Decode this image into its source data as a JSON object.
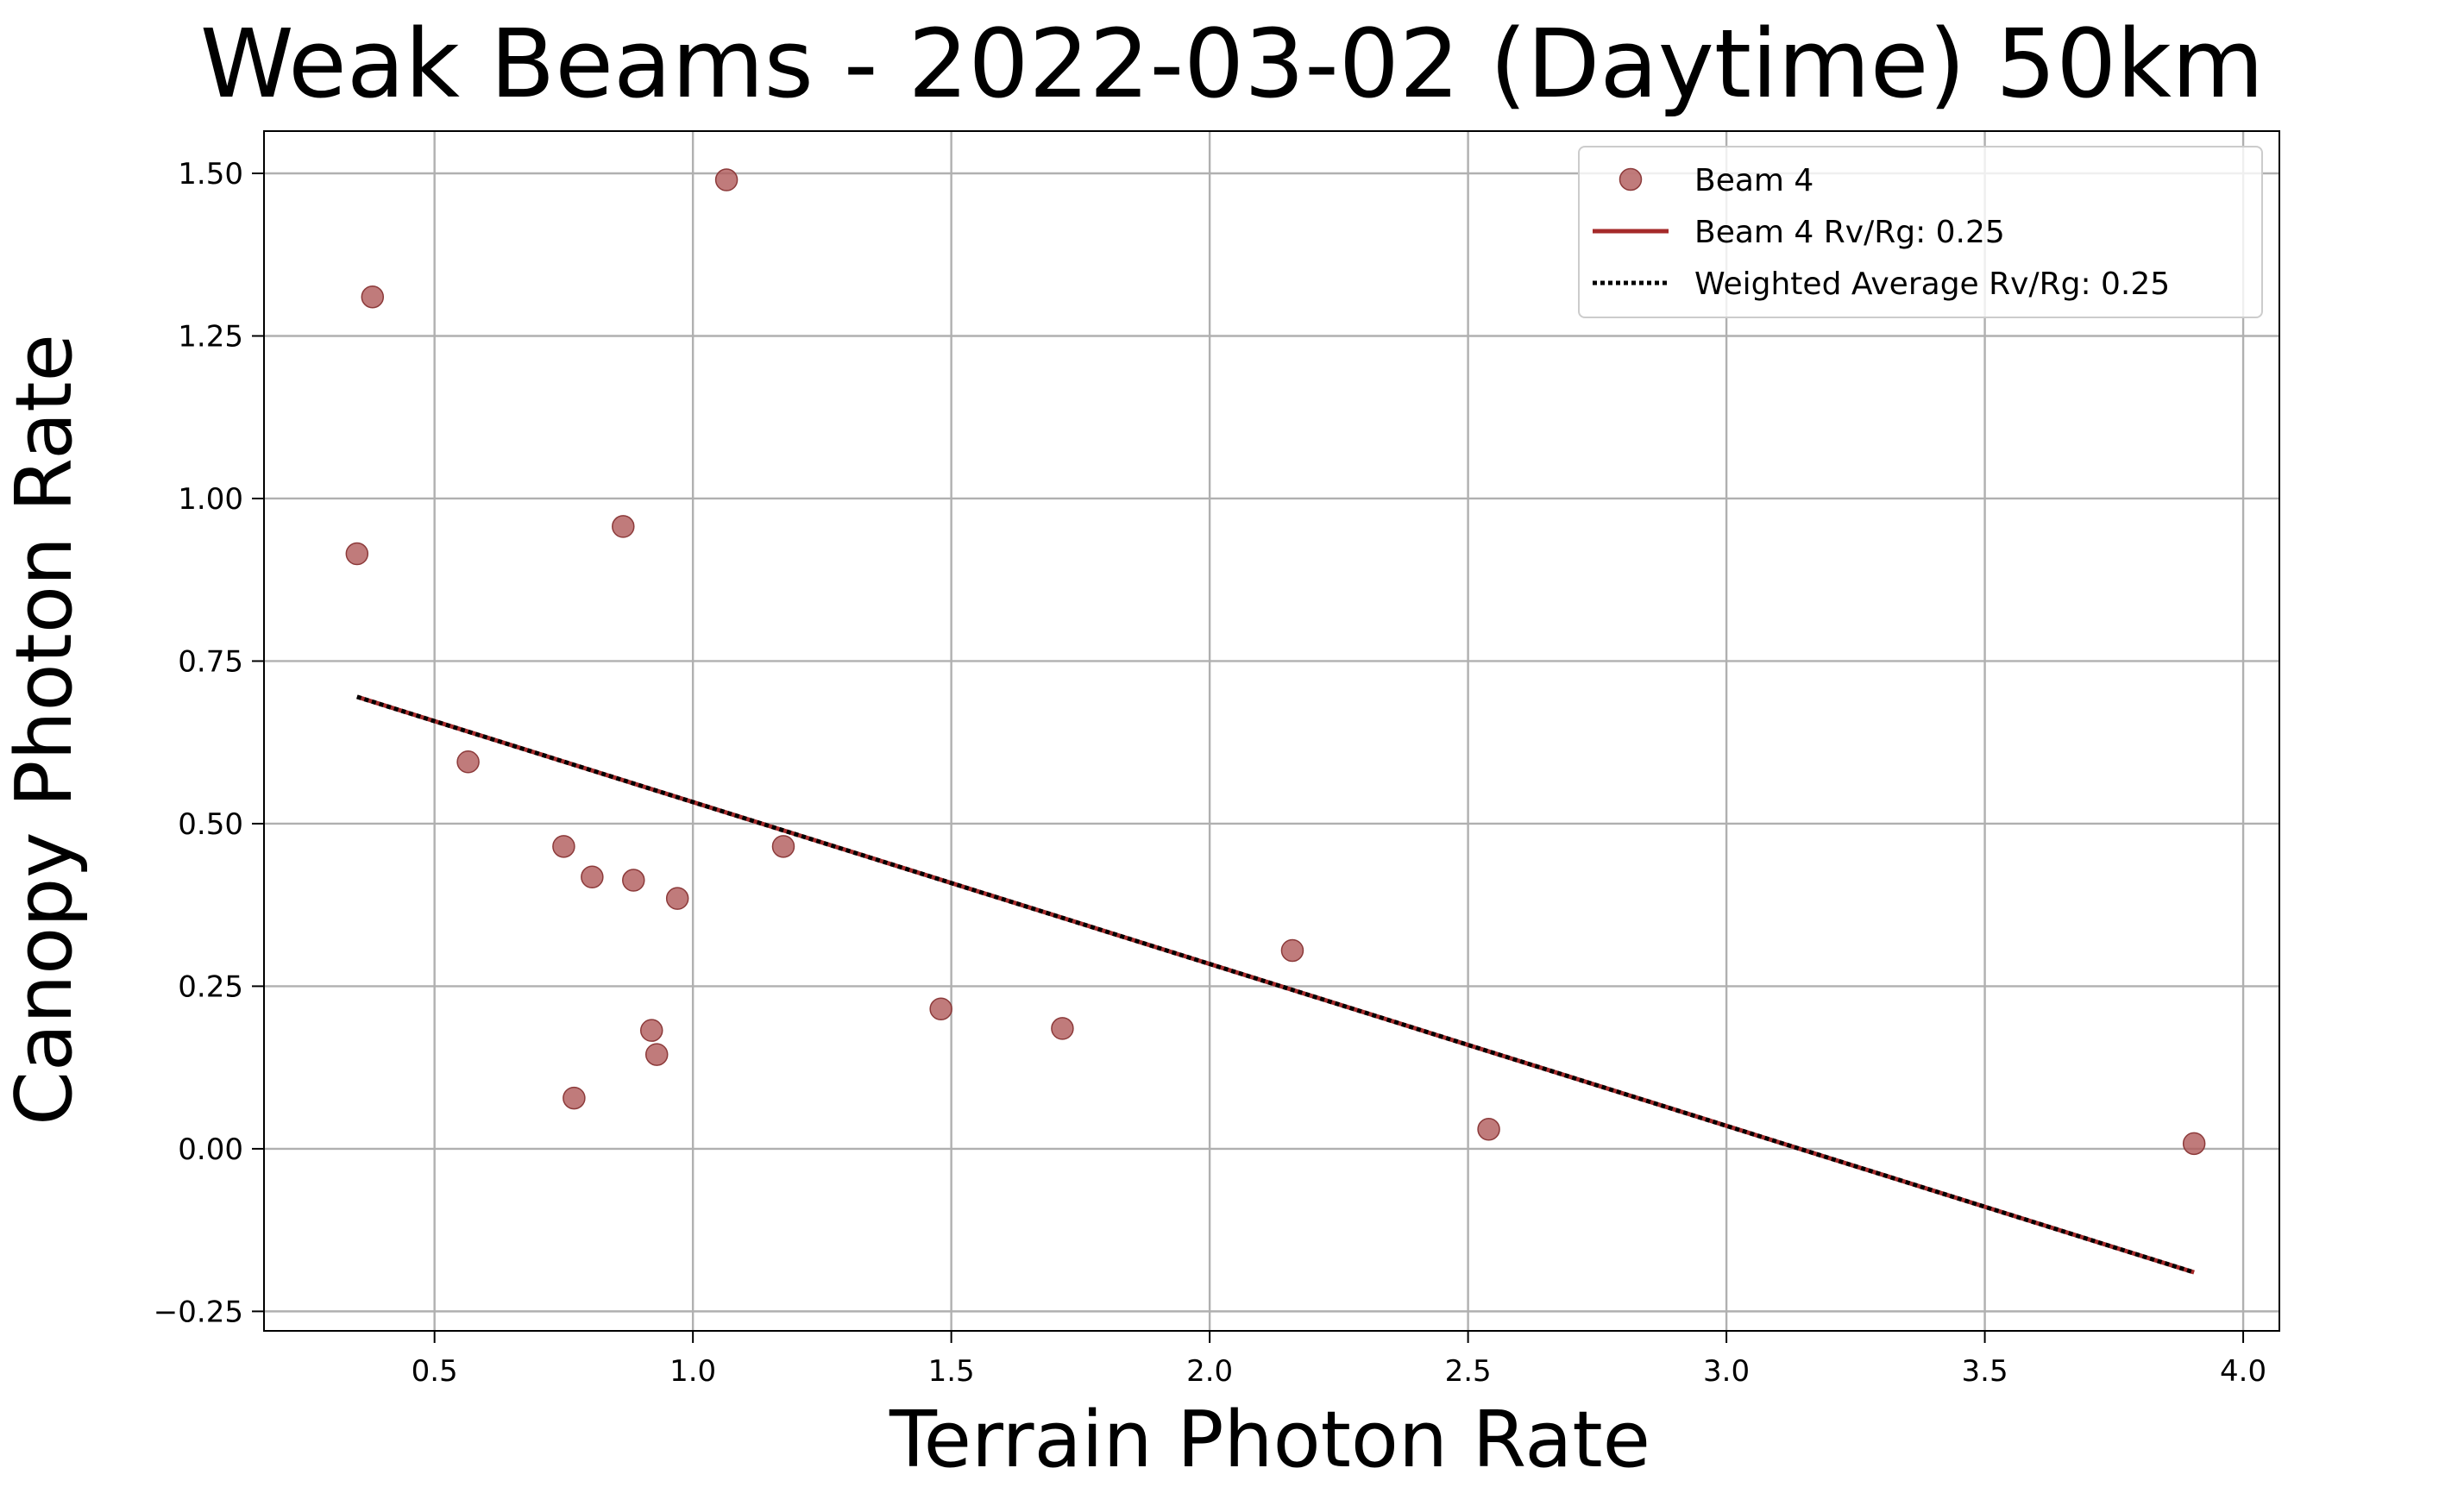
{
  "chart_data": {
    "type": "scatter",
    "title": "Weak Beams - 2022-03-02 (Daytime) 50km",
    "xlabel": "Terrain Photon Rate",
    "ylabel": "Canopy Photon Rate",
    "xlim": [
      0.17,
      4.07
    ],
    "ylim": [
      -0.28,
      1.565
    ],
    "xticks": [
      0.5,
      1.0,
      1.5,
      2.0,
      2.5,
      3.0,
      3.5,
      4.0
    ],
    "xtick_labels": [
      "0.5",
      "1.0",
      "1.5",
      "2.0",
      "2.5",
      "3.0",
      "3.5",
      "4.0"
    ],
    "yticks": [
      -0.25,
      0.0,
      0.25,
      0.5,
      0.75,
      1.0,
      1.25,
      1.5
    ],
    "ytick_labels": [
      "−0.25",
      "0.00",
      "0.25",
      "0.50",
      "0.75",
      "1.00",
      "1.25",
      "1.50"
    ],
    "grid": true,
    "legend_position": "top-right",
    "series": [
      {
        "name": "Beam 4",
        "kind": "scatter",
        "color": "#b05a5a",
        "points": [
          {
            "x": 0.35,
            "y": 0.915
          },
          {
            "x": 0.38,
            "y": 1.31
          },
          {
            "x": 0.565,
            "y": 0.595
          },
          {
            "x": 0.75,
            "y": 0.465
          },
          {
            "x": 0.77,
            "y": 0.078
          },
          {
            "x": 0.805,
            "y": 0.418
          },
          {
            "x": 0.865,
            "y": 0.957
          },
          {
            "x": 0.885,
            "y": 0.413
          },
          {
            "x": 0.92,
            "y": 0.182
          },
          {
            "x": 0.93,
            "y": 0.145
          },
          {
            "x": 0.97,
            "y": 0.385
          },
          {
            "x": 1.065,
            "y": 1.49
          },
          {
            "x": 1.175,
            "y": 0.465
          },
          {
            "x": 1.48,
            "y": 0.215
          },
          {
            "x": 1.715,
            "y": 0.185
          },
          {
            "x": 2.16,
            "y": 0.305
          },
          {
            "x": 2.54,
            "y": 0.03
          },
          {
            "x": 3.905,
            "y": 0.008
          }
        ]
      },
      {
        "name": "Beam 4 Rv/Rg: 0.25",
        "kind": "line",
        "color": "#a52a2a",
        "dash": "solid",
        "x": [
          0.35,
          3.905
        ],
        "y": [
          0.695,
          -0.19
        ]
      },
      {
        "name": "Weighted Average Rv/Rg: 0.25",
        "kind": "line",
        "color": "#000000",
        "dash": "dotted",
        "x": [
          0.35,
          3.905
        ],
        "y": [
          0.695,
          -0.19
        ]
      }
    ]
  }
}
